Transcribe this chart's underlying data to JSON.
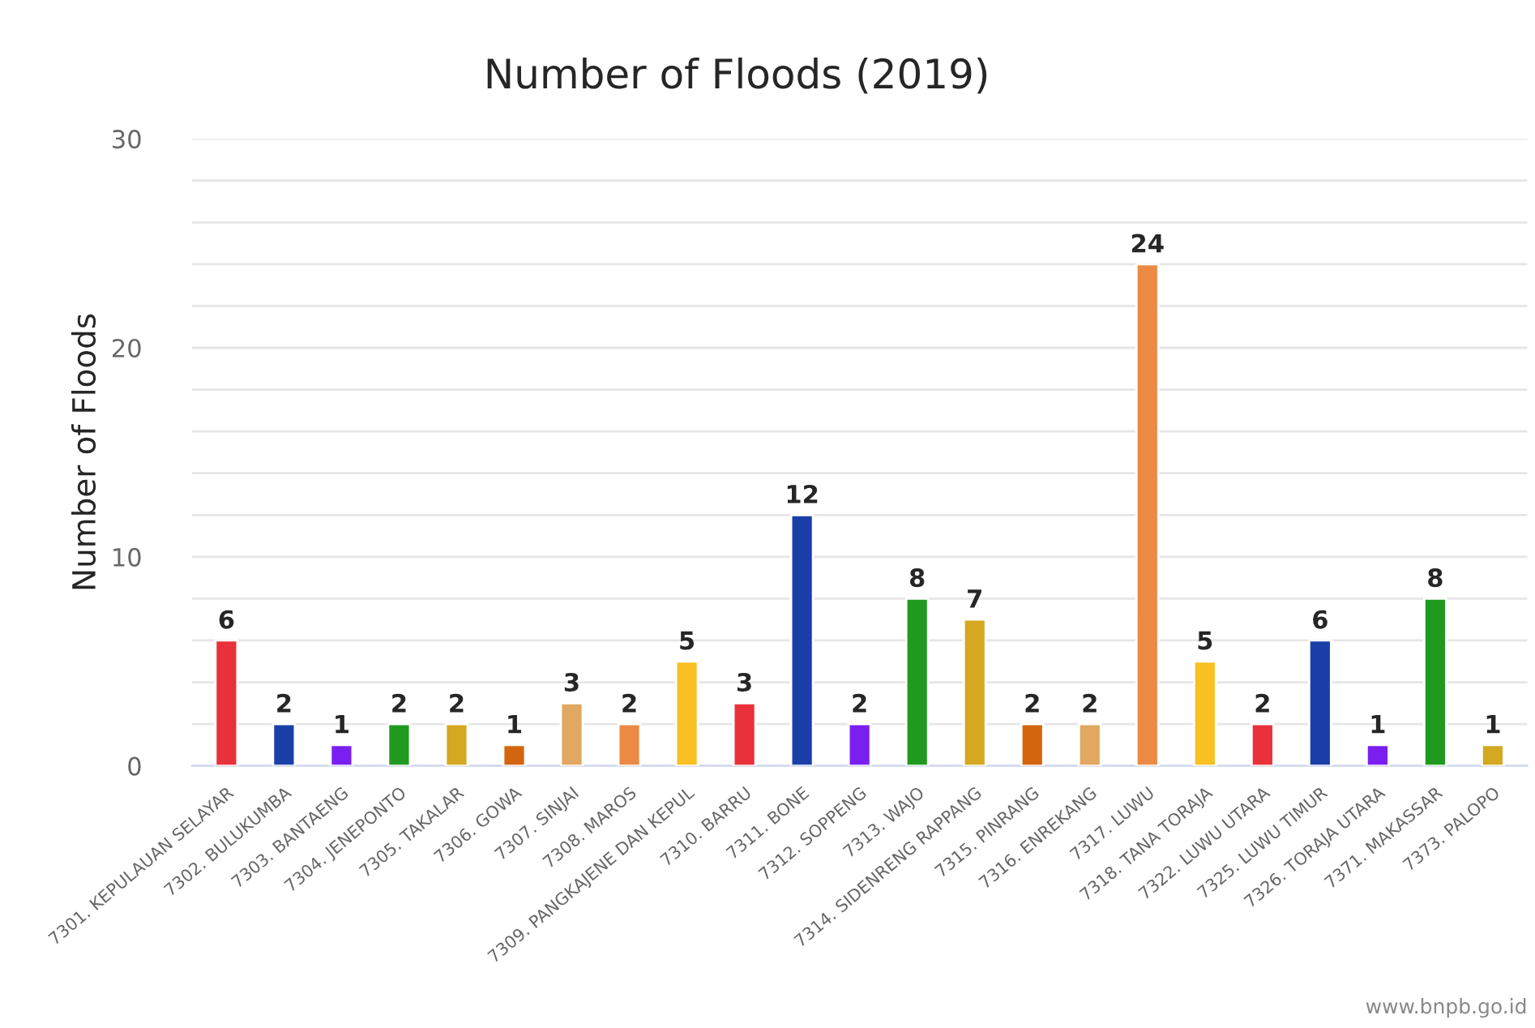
{
  "chart_data": {
    "type": "bar",
    "title": "Number of Floods (2019)",
    "ylabel": "Number of Floods",
    "categories": [
      "7301. KEPULAUAN SELAYAR",
      "7302. BULUKUMBA",
      "7303. BANTAENG",
      "7304. JENEPONTO",
      "7305. TAKALAR",
      "7306. GOWA",
      "7307. SINJAI",
      "7308. MAROS",
      "7309. PANGKAJENE DAN KEPUL",
      "7310. BARRU",
      "7311. BONE",
      "7312. SOPPENG",
      "7313. WAJO",
      "7314. SIDENRENG RAPPANG",
      "7315. PINRANG",
      "7316. ENREKANG",
      "7317. LUWU",
      "7318. TANA TORAJA",
      "7322. LUWU UTARA",
      "7325. LUWU TIMUR",
      "7326. TORAJA UTARA",
      "7371. MAKASSAR",
      "7373. PALOPO"
    ],
    "values": [
      6,
      2,
      1,
      2,
      2,
      1,
      3,
      2,
      5,
      3,
      12,
      2,
      8,
      7,
      2,
      2,
      24,
      5,
      2,
      6,
      1,
      8,
      1
    ],
    "colors": [
      "#e8313a",
      "#1a3fa8",
      "#7a1ff0",
      "#1f9a1f",
      "#d4a820",
      "#d4650f",
      "#e0a860",
      "#ec8a45",
      "#f8c020",
      "#e8313a",
      "#1a3fa8",
      "#7a1ff0",
      "#1f9a1f",
      "#d4a820",
      "#d4650f",
      "#e0a860",
      "#ec8a45",
      "#f8c020",
      "#e8313a",
      "#1a3fa8",
      "#7a1ff0",
      "#1f9a1f",
      "#d4a820"
    ],
    "ylim": [
      0,
      30
    ],
    "yticks": [
      0,
      {
        "value": 2,
        "label": null
      },
      {
        "value": 4,
        "label": null
      },
      {
        "value": 6,
        "label": null
      },
      {
        "value": 8,
        "label": null
      },
      10,
      {
        "value": 12,
        "label": null
      },
      {
        "value": 14,
        "label": null
      },
      {
        "value": 16,
        "label": null
      },
      {
        "value": 18,
        "label": null
      },
      20,
      {
        "value": 22,
        "label": null
      },
      {
        "value": 24,
        "label": null
      },
      {
        "value": 26,
        "label": null
      },
      {
        "value": 28,
        "label": null
      },
      30
    ],
    "grid": "y",
    "data_labels": true,
    "legend": false,
    "annotations": [
      "www.bnpb.go.id"
    ]
  }
}
